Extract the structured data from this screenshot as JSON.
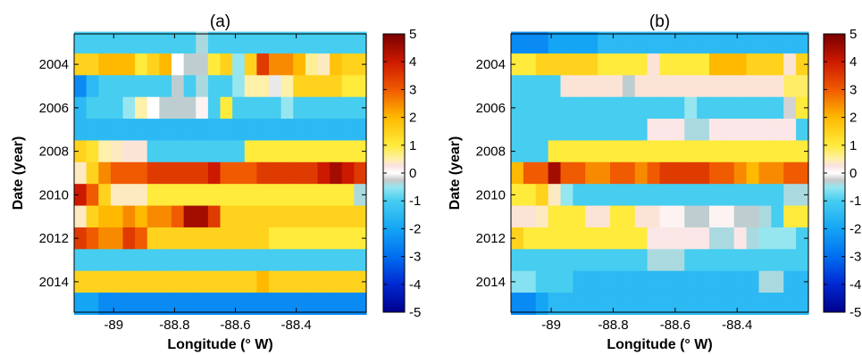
{
  "chart_data": [
    {
      "type": "heatmap",
      "title": "(a)",
      "xlabel": "Longitude (° W)",
      "ylabel": "Date (year)",
      "xlim": [
        -89.13,
        -88.17
      ],
      "ylim": [
        2002.6,
        2015.4
      ],
      "x_ticks": [
        -89,
        -88.8,
        -88.6,
        -88.4
      ],
      "x_tick_labels": [
        "-89",
        "-88.8",
        "-88.6",
        "-88.4"
      ],
      "y_ticks": [
        2004,
        2006,
        2008,
        2010,
        2012,
        2014
      ],
      "y_tick_labels": [
        "2004",
        "2006",
        "2008",
        "2010",
        "2012",
        "2014"
      ],
      "colorbar": {
        "min": -5,
        "max": 5,
        "ticks": [
          -5,
          -4,
          -3,
          -2,
          -1,
          0,
          1,
          2,
          3,
          4,
          5
        ],
        "tick_labels": [
          "-5",
          "-4",
          "-3",
          "-2",
          "-1",
          "0",
          "1",
          "2",
          "3",
          "4",
          "5"
        ]
      },
      "grid": false,
      "rows": [
        {
          "year": 2003,
          "values": [
            -1,
            -1,
            -1,
            -1,
            -1,
            -1,
            -1,
            -1,
            -1,
            -1,
            -0.4,
            -1,
            -1,
            -1,
            -1,
            -1,
            -1,
            -1,
            -1,
            -1,
            -1,
            -1,
            -1,
            -1
          ]
        },
        {
          "year": 2004,
          "values": [
            1.5,
            1.5,
            2,
            2,
            2,
            1,
            1.5,
            2,
            0,
            -0.3,
            -0.3,
            1,
            1.5,
            -0.5,
            1.5,
            3.5,
            2.5,
            2.5,
            2,
            0.6,
            0.4,
            1.8,
            1.5,
            1.5
          ]
        },
        {
          "year": 2005,
          "values": [
            -2.5,
            -1.5,
            -1,
            -1,
            -1,
            -1,
            -1,
            -1,
            -0.3,
            -1,
            -0.4,
            -1,
            -1,
            -0.5,
            0.5,
            0.5,
            -0.1,
            0.5,
            1.5,
            1.5,
            1.5,
            1.5,
            1,
            1
          ]
        },
        {
          "year": 2006,
          "values": [
            -1.5,
            -1,
            -1,
            -1,
            -0.5,
            0.5,
            0,
            -0.3,
            -0.3,
            -0.3,
            0.1,
            -1,
            1,
            -1,
            -1,
            -1,
            -1,
            -0.5,
            -1,
            -1,
            -1,
            -1,
            -1,
            -1
          ]
        },
        {
          "year": 2007,
          "values": [
            -1.5,
            -1.5,
            -1.5,
            -1.5,
            -1.5,
            -1.5,
            -1.5,
            -1.5,
            -1.5,
            -1.5,
            -1.5,
            -1.5,
            -1.5,
            -1.5,
            -1.5,
            -1.5,
            -1.5,
            -1.5,
            -1.5,
            -1.5,
            -1.5,
            -1.5,
            -1.5,
            -1.5
          ]
        },
        {
          "year": 2008,
          "values": [
            1.5,
            1.2,
            0.5,
            0.4,
            0.3,
            0.3,
            -1,
            -1,
            -1,
            -1,
            -1,
            -1,
            -1,
            -1,
            1,
            1,
            1,
            1,
            1,
            1,
            1,
            1,
            1,
            1
          ]
        },
        {
          "year": 2009,
          "values": [
            0.4,
            1.5,
            2.5,
            3,
            3,
            3,
            3.5,
            3.5,
            3.5,
            3.5,
            3.5,
            4,
            3,
            3,
            3,
            3.5,
            3.5,
            3.5,
            3.5,
            3.5,
            4,
            4.5,
            4,
            3.5
          ]
        },
        {
          "year": 2010,
          "values": [
            4,
            3,
            1.5,
            0.4,
            0.4,
            0.4,
            1,
            1,
            1,
            1,
            1,
            1,
            1,
            1,
            1,
            1,
            1,
            1,
            1,
            1,
            1,
            1,
            1,
            -0.4
          ]
        },
        {
          "year": 2011,
          "values": [
            0.4,
            1.5,
            2,
            2,
            2.5,
            2,
            2.5,
            2.5,
            3,
            4.5,
            4.5,
            3.5,
            1.5,
            1.5,
            1.5,
            1.5,
            1.5,
            1.5,
            1.5,
            1.5,
            1.5,
            1.5,
            1.5,
            1.5
          ]
        },
        {
          "year": 2012,
          "values": [
            3.5,
            3,
            2.5,
            2.5,
            3.5,
            3,
            1.5,
            1.5,
            1.5,
            1.5,
            1.5,
            1.5,
            1.5,
            1.5,
            1.5,
            1.5,
            1,
            1,
            1,
            1,
            1,
            1,
            1,
            1
          ]
        },
        {
          "year": 2013,
          "values": [
            -1,
            -1,
            -1,
            -1,
            -1,
            -1,
            -1,
            -1,
            -1,
            -1,
            -1,
            -1,
            -1,
            -1,
            -1,
            -1,
            -1,
            -1,
            -1,
            -1,
            -1,
            -1,
            -1,
            -1
          ]
        },
        {
          "year": 2014,
          "values": [
            1.5,
            1.5,
            1.5,
            1.5,
            1.5,
            1.5,
            1.5,
            1.5,
            1.5,
            1.5,
            1.5,
            1.5,
            1.5,
            1.5,
            1.5,
            2,
            1.5,
            1.5,
            1.5,
            1.5,
            1.5,
            1.5,
            1.5,
            1.5
          ]
        },
        {
          "year": 2015,
          "values": [
            -2,
            -2,
            -2.5,
            -2.5,
            -2.5,
            -2.5,
            -2.5,
            -2.5,
            -2.5,
            -2.5,
            -2.5,
            -2.5,
            -2.5,
            -2.5,
            -2.5,
            -2.5,
            -2.5,
            -2.5,
            -2.5,
            -2.5,
            -2.5,
            -2.5,
            -2.5,
            -2.5
          ]
        }
      ]
    },
    {
      "type": "heatmap",
      "title": "(b)",
      "xlabel": "Longitude (° W)",
      "ylabel": "Date (year)",
      "xlim": [
        -89.13,
        -88.17
      ],
      "ylim": [
        2002.6,
        2015.4
      ],
      "x_ticks": [
        -89,
        -88.8,
        -88.6,
        -88.4
      ],
      "x_tick_labels": [
        "-89",
        "-88.8",
        "-88.6",
        "-88.4"
      ],
      "y_ticks": [
        2004,
        2006,
        2008,
        2010,
        2012,
        2014
      ],
      "y_tick_labels": [
        "2004",
        "2006",
        "2008",
        "2010",
        "2012",
        "2014"
      ],
      "colorbar": {
        "min": -5,
        "max": 5,
        "ticks": [
          -5,
          -4,
          -3,
          -2,
          -1,
          0,
          1,
          2,
          3,
          4,
          5
        ],
        "tick_labels": [
          "-5",
          "-4",
          "-3",
          "-2",
          "-1",
          "0",
          "1",
          "2",
          "3",
          "4",
          "5"
        ]
      },
      "grid": false,
      "rows": [
        {
          "year": 2003,
          "values": [
            -2.5,
            -2.5,
            -2.5,
            -2,
            -2,
            -2,
            -2,
            -1.5,
            -1.5,
            -1.5,
            -1.5,
            -1.5,
            -1.5,
            -1.5,
            -1.5,
            -1.5,
            -1.5,
            -1.5,
            -1.5,
            -1.5,
            -1.5,
            -1.5,
            -1.5,
            -1.5
          ]
        },
        {
          "year": 2004,
          "values": [
            1,
            1,
            1.5,
            1.5,
            1.5,
            1.5,
            1.5,
            1,
            1,
            1,
            1,
            0.3,
            1,
            1,
            1,
            1,
            2,
            2,
            2,
            1.5,
            1.5,
            1.5,
            0.3,
            1.5
          ]
        },
        {
          "year": 2005,
          "values": [
            -1,
            -1,
            -1,
            -1,
            0.3,
            0.3,
            0.3,
            0.3,
            0.3,
            -0.3,
            0.3,
            0.3,
            0.3,
            0.3,
            0.3,
            0.3,
            0.3,
            0.3,
            0.3,
            0.3,
            0.3,
            0.3,
            0.8,
            0.8
          ]
        },
        {
          "year": 2006,
          "values": [
            -1,
            -1,
            -1,
            -1,
            -1,
            -1,
            -1,
            -1,
            -1,
            -1,
            -1,
            -1,
            -1,
            -1,
            -0.5,
            -1,
            -1,
            -1,
            -1,
            -1,
            -1,
            -1,
            -0.2,
            1
          ]
        },
        {
          "year": 2007,
          "values": [
            -1,
            -1,
            -1,
            -1,
            -1,
            -1,
            -1,
            -1,
            -1,
            -1,
            -1,
            0.2,
            0.2,
            0.2,
            -0.4,
            -0.4,
            0.2,
            0.2,
            0.2,
            0.2,
            0.2,
            0.2,
            0.2,
            -1
          ]
        },
        {
          "year": 2008,
          "values": [
            -1,
            -1,
            -1,
            1,
            1,
            1,
            1,
            1,
            1,
            1,
            1,
            1,
            1,
            1,
            1,
            1,
            1,
            1,
            1,
            1,
            1,
            1,
            1,
            1
          ]
        },
        {
          "year": 2009,
          "values": [
            2,
            3,
            3,
            4.5,
            3,
            3,
            2.5,
            2.5,
            3,
            3,
            2.5,
            3,
            3.5,
            3.5,
            3.5,
            3.5,
            3,
            3,
            2.5,
            2,
            2.5,
            2.5,
            3,
            3
          ]
        },
        {
          "year": 2010,
          "values": [
            1,
            1,
            1.5,
            0.4,
            -0.5,
            -1,
            -1,
            -1,
            -1,
            -1,
            -1,
            -1,
            -1,
            -1,
            -1,
            -1,
            -1,
            -1,
            -1,
            -1,
            -1,
            -1,
            -0.4,
            -0.4
          ]
        },
        {
          "year": 2011,
          "values": [
            0.3,
            0.3,
            0.4,
            1,
            1,
            1,
            0.3,
            0.3,
            1,
            1,
            0.3,
            0.3,
            0.1,
            0.1,
            -0.3,
            -0.3,
            0.1,
            0.1,
            -0.3,
            -0.3,
            -0.4,
            -1,
            1,
            1
          ]
        },
        {
          "year": 2012,
          "values": [
            1.5,
            1,
            1,
            1,
            1,
            1,
            1,
            1,
            1,
            1,
            1,
            0.2,
            0.2,
            0.2,
            0.2,
            0.2,
            -0.4,
            -0.4,
            0.2,
            -0.4,
            -0.5,
            -0.5,
            -0.5,
            -1
          ]
        },
        {
          "year": 2013,
          "values": [
            -1,
            -1,
            -1,
            -1,
            -1,
            -1,
            -1,
            -1,
            -1,
            -1,
            -1,
            -0.4,
            -0.4,
            -0.4,
            -1,
            -1,
            -1,
            -1,
            -1,
            -1,
            -1,
            -1,
            -1,
            -1
          ]
        },
        {
          "year": 2014,
          "values": [
            -0.6,
            -0.6,
            -1,
            -1,
            -1,
            -1.5,
            -1.5,
            -1.5,
            -1.5,
            -1.5,
            -1.5,
            -1.5,
            -1.5,
            -1.5,
            -1.5,
            -1.5,
            -1.5,
            -1.5,
            -1.5,
            -1.5,
            -0.4,
            -0.4,
            -1.5,
            -1.5
          ]
        },
        {
          "year": 2015,
          "values": [
            -2.5,
            -2.5,
            -2,
            -1.5,
            -1.5,
            -1.5,
            -1.5,
            -1.5,
            -1.5,
            -1.5,
            -1.5,
            -1.5,
            -1.5,
            -1.5,
            -1.5,
            -1.5,
            -1.5,
            -1.5,
            -1.5,
            -1.5,
            -1.5,
            -1.5,
            -1.5,
            -1.5
          ]
        }
      ]
    }
  ]
}
